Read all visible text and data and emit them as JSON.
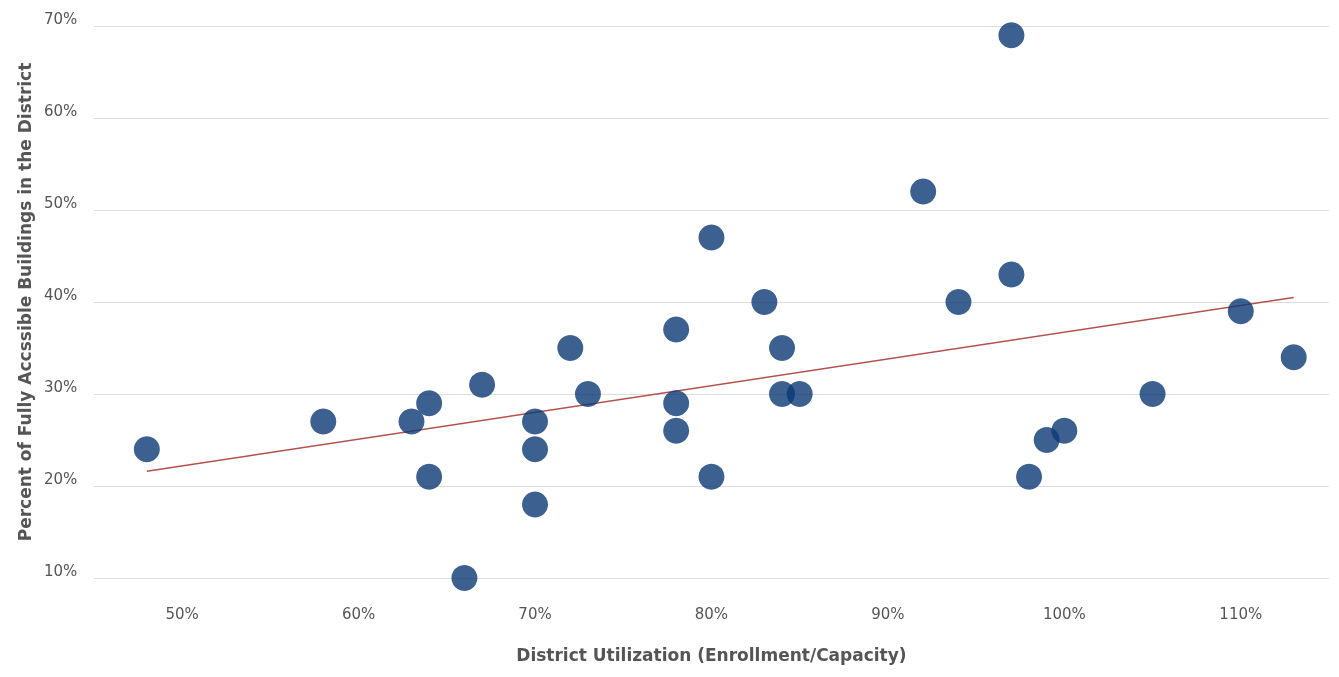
{
  "chart_data": {
    "type": "scatter",
    "xlabel": "District Utilization (Enrollment/Capacity)",
    "ylabel": "Percent of Fully Accssible Buildings in the District",
    "xlim": [
      45,
      115
    ],
    "ylim": [
      10,
      70
    ],
    "xticks": [
      {
        "value": 50,
        "label": "50%"
      },
      {
        "value": 60,
        "label": "60%"
      },
      {
        "value": 70,
        "label": "70%"
      },
      {
        "value": 80,
        "label": "80%"
      },
      {
        "value": 90,
        "label": "90%"
      },
      {
        "value": 100,
        "label": "100%"
      },
      {
        "value": 110,
        "label": "110%"
      }
    ],
    "yticks": [
      {
        "value": 10,
        "label": "10%"
      },
      {
        "value": 20,
        "label": "20%"
      },
      {
        "value": 30,
        "label": "30%"
      },
      {
        "value": 40,
        "label": "40%"
      },
      {
        "value": 50,
        "label": "50%"
      },
      {
        "value": 60,
        "label": "60%"
      },
      {
        "value": 70,
        "label": "70%"
      }
    ],
    "grid": "y",
    "series": [
      {
        "marker": "circle",
        "color": "#0b3a75",
        "x": [
          48,
          58,
          63,
          64,
          64,
          67,
          66,
          70,
          70,
          70,
          72,
          73,
          78,
          78,
          78,
          80,
          80,
          83,
          84,
          84,
          85,
          92,
          94,
          97,
          97,
          98,
          99,
          100,
          105,
          110,
          113
        ],
        "values": [
          24,
          27,
          27,
          29,
          21,
          31,
          10,
          27,
          24,
          18,
          35,
          30,
          37,
          29,
          26,
          47,
          21,
          40,
          35,
          30,
          30,
          52,
          40,
          69,
          43,
          21,
          25,
          26,
          30,
          39,
          34
        ]
      },
      {
        "type": "line",
        "color": "#b5504b",
        "x": [
          48,
          113
        ],
        "values": [
          21.6,
          40.5
        ]
      }
    ]
  }
}
